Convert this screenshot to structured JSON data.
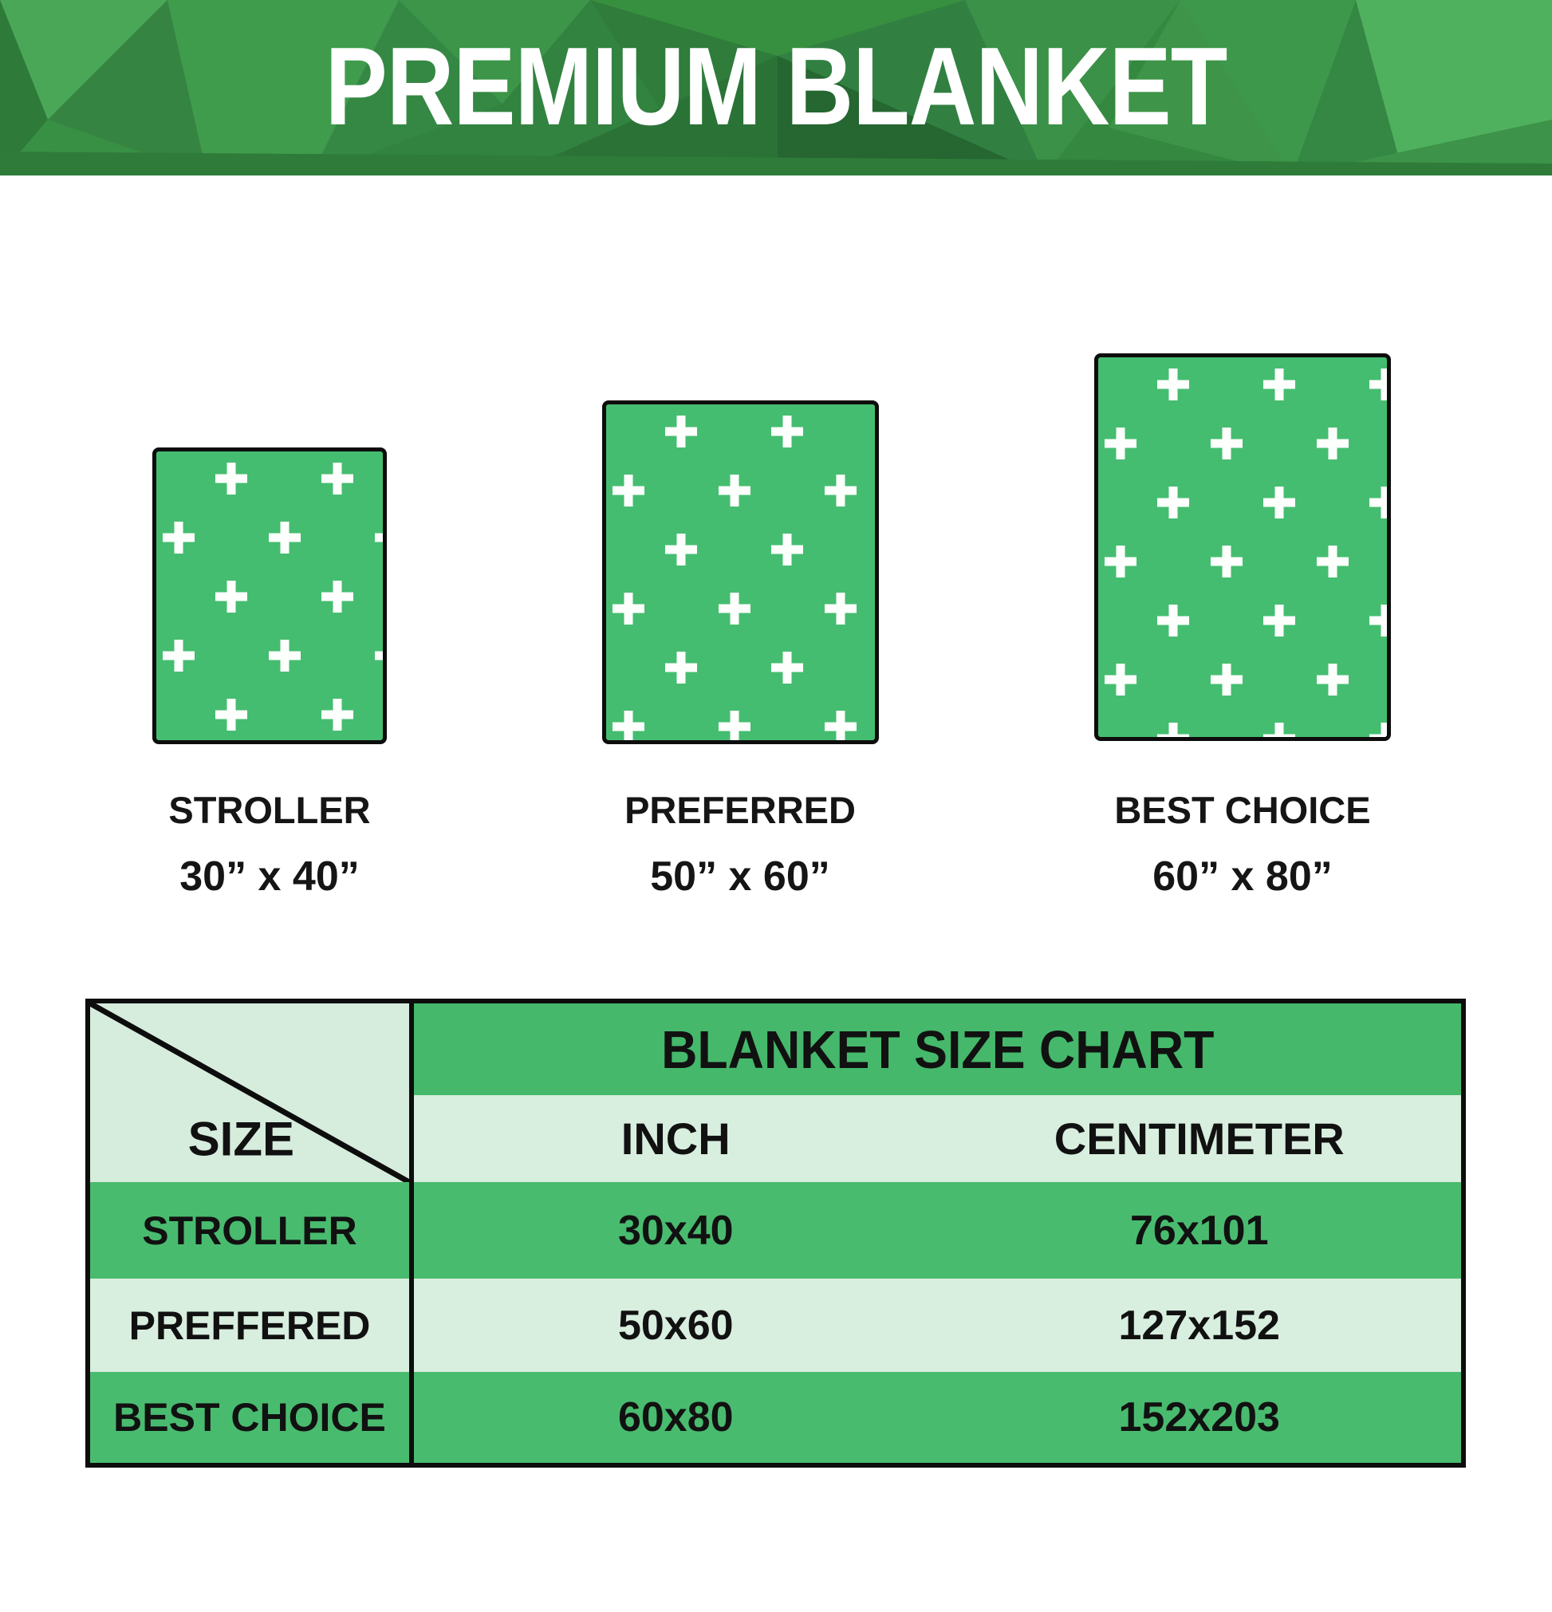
{
  "title": "PREMIUM BLANKET",
  "colors": {
    "banner_green_base": "#3e9449",
    "banner_green_dark": "#2b7237",
    "banner_green_light": "#4fb15e",
    "blanket_green": "#45bd70",
    "table_header_green": "#45b86b",
    "table_row_green": "#49bb6f",
    "table_row_light": "#d8eede",
    "corner_cell_light": "#d6ecdd",
    "border_black": "#0d0d0d",
    "title_white": "#ffffff"
  },
  "blankets": [
    {
      "name": "STROLLER",
      "dimensions": "30” x 40”"
    },
    {
      "name": "PREFERRED",
      "dimensions": "50” x 60”"
    },
    {
      "name": "BEST CHOICE",
      "dimensions": "60” x 80”"
    }
  ],
  "size_chart": {
    "title": "BLANKET SIZE CHART",
    "corner_label": "SIZE",
    "col_inch": "INCH",
    "col_cm": "CENTIMETER",
    "rows": [
      {
        "size": "STROLLER",
        "inch": "30x40",
        "centimeter": "76x101"
      },
      {
        "size": "PREFFERED",
        "inch": "50x60",
        "centimeter": "127x152"
      },
      {
        "size": "BEST CHOICE",
        "inch": "60x80",
        "centimeter": "152x203"
      }
    ]
  },
  "chart_data": {
    "type": "table",
    "title": "BLANKET SIZE CHART",
    "columns": [
      "SIZE",
      "INCH",
      "CENTIMETER"
    ],
    "rows": [
      [
        "STROLLER",
        "30x40",
        "76x101"
      ],
      [
        "PREFFERED",
        "50x60",
        "127x152"
      ],
      [
        "BEST CHOICE",
        "60x80",
        "152x203"
      ]
    ]
  }
}
